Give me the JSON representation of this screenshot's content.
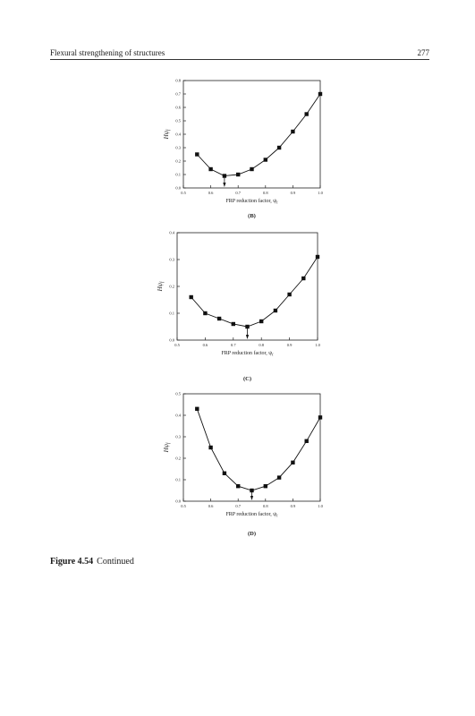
{
  "header": {
    "title": "Flexural strengthening of structures",
    "page_number": "277"
  },
  "caption": {
    "label": "Figure 4.54",
    "text": "Continued"
  },
  "chart_data": [
    {
      "type": "line",
      "panel_label": "(B)",
      "xlabel": "FRP reduction factor, ψ",
      "xlabel_sub": "f",
      "ylabel": "Hψ",
      "ylabel_sub": "f",
      "xlim": [
        0.5,
        1.0
      ],
      "ylim": [
        0.0,
        0.8
      ],
      "xticks": [
        "0.5",
        "0.6",
        "0.7",
        "0.8",
        "0.9",
        "1.0"
      ],
      "yticks": [
        "0.0",
        "0.1",
        "0.2",
        "0.3",
        "0.4",
        "0.5",
        "0.6",
        "0.7",
        "0.8"
      ],
      "x": [
        0.55,
        0.6,
        0.65,
        0.7,
        0.75,
        0.8,
        0.85,
        0.9,
        0.95,
        1.0
      ],
      "y": [
        0.25,
        0.14,
        0.09,
        0.1,
        0.14,
        0.21,
        0.3,
        0.42,
        0.55,
        0.7
      ],
      "marker": "square",
      "min_arrow_x": 0.65
    },
    {
      "type": "line",
      "panel_label": "(C)",
      "xlabel": "FRP reduction factor, ψ",
      "xlabel_sub": "f",
      "ylabel": "Hψ",
      "ylabel_sub": "f",
      "xlim": [
        0.5,
        1.0
      ],
      "ylim": [
        0.0,
        0.4
      ],
      "xticks": [
        "0.5",
        "0.6",
        "0.7",
        "0.8",
        "0.9",
        "1.0"
      ],
      "yticks": [
        "0.0",
        "0.1",
        "0.2",
        "0.3",
        "0.4"
      ],
      "x": [
        0.55,
        0.6,
        0.65,
        0.7,
        0.75,
        0.8,
        0.85,
        0.9,
        0.95,
        1.0
      ],
      "y": [
        0.16,
        0.1,
        0.08,
        0.06,
        0.05,
        0.07,
        0.11,
        0.17,
        0.23,
        0.31
      ],
      "marker": "square",
      "min_arrow_x": 0.75
    },
    {
      "type": "line",
      "panel_label": "(D)",
      "xlabel": "FRP reduction factor, ψ",
      "xlabel_sub": "f",
      "ylabel": "Hψ",
      "ylabel_sub": "f",
      "xlim": [
        0.5,
        1.0
      ],
      "ylim": [
        0.0,
        0.5
      ],
      "xticks": [
        "0.5",
        "0.6",
        "0.7",
        "0.8",
        "0.9",
        "1.0"
      ],
      "yticks": [
        "0.0",
        "0.1",
        "0.2",
        "0.3",
        "0.4",
        "0.5"
      ],
      "x": [
        0.55,
        0.6,
        0.65,
        0.7,
        0.75,
        0.8,
        0.85,
        0.9,
        0.95,
        1.0
      ],
      "y": [
        0.43,
        0.25,
        0.13,
        0.07,
        0.05,
        0.07,
        0.11,
        0.18,
        0.28,
        0.39
      ],
      "marker": "square",
      "min_arrow_x": 0.75
    }
  ]
}
